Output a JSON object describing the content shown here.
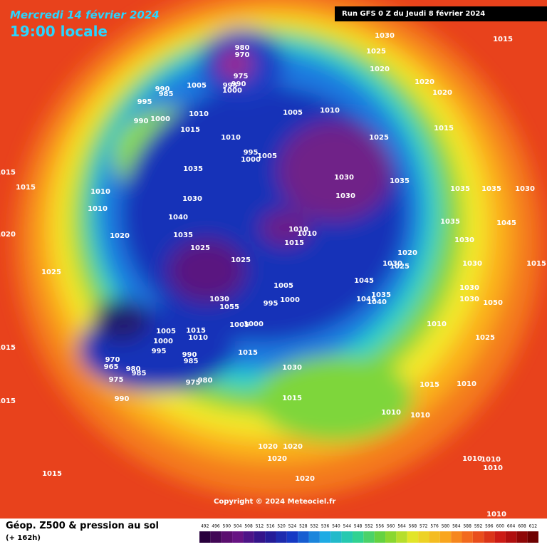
{
  "header": {
    "date": "Mercredi 14 février 2024",
    "time": "19:00 locale",
    "run": "Run GFS 0 Z du Jeudi 8 février 2024"
  },
  "copyright": "Copyright © 2024 Meteociel.fr",
  "footer": {
    "title": "Géop. Z500 & pression au sol",
    "lead": "(+ 162h)"
  },
  "legend": {
    "values": [
      492,
      496,
      500,
      504,
      508,
      512,
      516,
      520,
      524,
      528,
      532,
      536,
      540,
      544,
      548,
      552,
      556,
      560,
      564,
      568,
      572,
      576,
      580,
      584,
      588,
      592,
      596,
      600,
      604,
      608,
      612
    ]
  },
  "isobar_labels": [
    1030,
    1025,
    1020,
    1015,
    980,
    970,
    975,
    990,
    995,
    1000,
    1005,
    990,
    985,
    995,
    990,
    1000,
    1010,
    1015,
    1005,
    1010,
    1025,
    1020,
    1020,
    1015,
    1010,
    995,
    1000,
    1005,
    1035,
    1030,
    1030,
    1035,
    1035,
    1035,
    1030,
    1015,
    1015,
    1010,
    1010,
    1030,
    1040,
    1035,
    1020,
    1010,
    1010,
    1015,
    1025,
    1025,
    1020,
    1025,
    1020,
    1030,
    1025,
    1035,
    1045,
    1030,
    1030,
    1015,
    1045,
    1045,
    1035,
    1040,
    1005,
    995,
    1000,
    1030,
    1055,
    1005,
    1000,
    1030,
    1030,
    1050,
    1010,
    1025,
    1005,
    1000,
    995,
    1015,
    1010,
    990,
    985,
    1015,
    970,
    965,
    980,
    985,
    975,
    975,
    980,
    990,
    1030,
    1015,
    1015,
    1010,
    1010,
    1010,
    1015,
    1015,
    1020,
    1020,
    1020,
    1020,
    1015,
    1010,
    1010,
    1010,
    1010
  ]
}
